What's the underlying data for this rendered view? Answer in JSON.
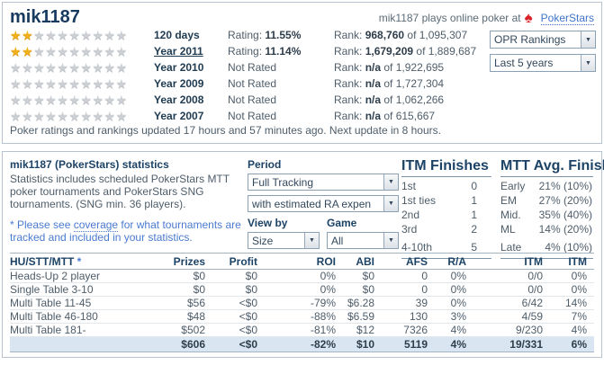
{
  "colors": {
    "accent_red": "#d8232a",
    "link_blue": "#3f74c9",
    "star_gold": "#f0b11c",
    "totals_row_bg": "#d9e6f2",
    "panel_border": "#b7c3ce"
  },
  "header": {
    "title": "mik1187",
    "tagline_prefix": "mik1187 plays online poker at",
    "site_link": "PokerStars",
    "spade_icon": "pokerstars-spade",
    "star_icon": "star"
  },
  "ratings": {
    "rating_label": "Rating:",
    "rank_label": "Rank:",
    "rows": [
      {
        "stars": 2,
        "period": "120 days",
        "selected": false,
        "rating": "11.55%",
        "not_rated": null,
        "rank": "968,760",
        "total": "of 1,095,307"
      },
      {
        "stars": 2,
        "period": "Year 2011",
        "selected": true,
        "rating": "11.14%",
        "not_rated": null,
        "rank": "1,679,209",
        "total": "of 1,889,687"
      },
      {
        "stars": 0,
        "period": "Year 2010",
        "selected": false,
        "rating": null,
        "not_rated": "Not Rated",
        "rank": "n/a",
        "total": "of 1,922,695"
      },
      {
        "stars": 0,
        "period": "Year 2009",
        "selected": false,
        "rating": null,
        "not_rated": "Not Rated",
        "rank": "n/a",
        "total": "of 1,727,304"
      },
      {
        "stars": 0,
        "period": "Year 2008",
        "selected": false,
        "rating": null,
        "not_rated": "Not Rated",
        "rank": "n/a",
        "total": "of 1,062,266"
      },
      {
        "stars": 0,
        "period": "Year 2007",
        "selected": false,
        "rating": null,
        "not_rated": "Not Rated",
        "rank": "n/a",
        "total": "of 615,667"
      }
    ],
    "dropdowns": {
      "rankings": "OPR Rankings",
      "timespan": "Last 5 years"
    },
    "update_note": "Poker ratings and rankings updated 17 hours and 57 minutes ago. Next update in 8 hours."
  },
  "stats_panel": {
    "title": "mik1187 (PokerStars) statistics",
    "description": "Statistics includes scheduled PokerStars MTT poker tournaments and PokerStars SNG tournaments. (SNG min. 36 players).",
    "note_prefix": "* Please see ",
    "note_link": "coverage",
    "note_suffix": " for what tournaments are tracked and included in your statistics.",
    "period": {
      "label": "Period",
      "tracking_value": "Full Tracking",
      "ra_value": "with estimated RA expen",
      "view_by_label": "View by",
      "view_by_value": "Size",
      "game_label": "Game",
      "game_value": "All"
    },
    "itm_finishes": {
      "title": "ITM Finishes",
      "rows": [
        [
          "1st",
          "0"
        ],
        [
          "1st ties",
          "1"
        ],
        [
          "2nd",
          "1"
        ],
        [
          "3rd",
          "2"
        ],
        [
          "4-10th",
          "5"
        ]
      ]
    },
    "mtt_avg": {
      "title": "MTT Avg. Finish%",
      "rows": [
        [
          "Early",
          "21% (10%)"
        ],
        [
          "EM",
          "27% (20%)"
        ],
        [
          "Mid.",
          "35% (40%)"
        ],
        [
          "ML",
          "14% (20%)"
        ],
        [
          "Late",
          "4% (10%)"
        ]
      ]
    }
  },
  "results_table": {
    "header_asterisk": "*",
    "columns": [
      "HU/STT/MTT",
      "Prizes",
      "Profit",
      "ROI",
      "ABI",
      "AFS",
      "R/A",
      "ITM",
      "ITM"
    ],
    "rows": [
      [
        "Heads-Up 2 player",
        "$0",
        "$0",
        "0%",
        "$0",
        "0",
        "0%",
        "0/0",
        "0%"
      ],
      [
        "Single Table 3-10",
        "$0",
        "$0",
        "0%",
        "$0",
        "0",
        "0%",
        "0/0",
        "0%"
      ],
      [
        "Multi Table 11-45",
        "$56",
        "<$0",
        "-79%",
        "$6.28",
        "39",
        "0%",
        "6/42",
        "14%"
      ],
      [
        "Multi Table 46-180",
        "$48",
        "<$0",
        "-88%",
        "$6.59",
        "130",
        "3%",
        "4/59",
        "7%"
      ],
      [
        "Multi Table 181-",
        "$502",
        "<$0",
        "-81%",
        "$12",
        "7326",
        "4%",
        "9/230",
        "4%"
      ]
    ],
    "totals": [
      "",
      "$606",
      "<$0",
      "-82%",
      "$10",
      "5119",
      "4%",
      "19/331",
      "6%"
    ]
  }
}
